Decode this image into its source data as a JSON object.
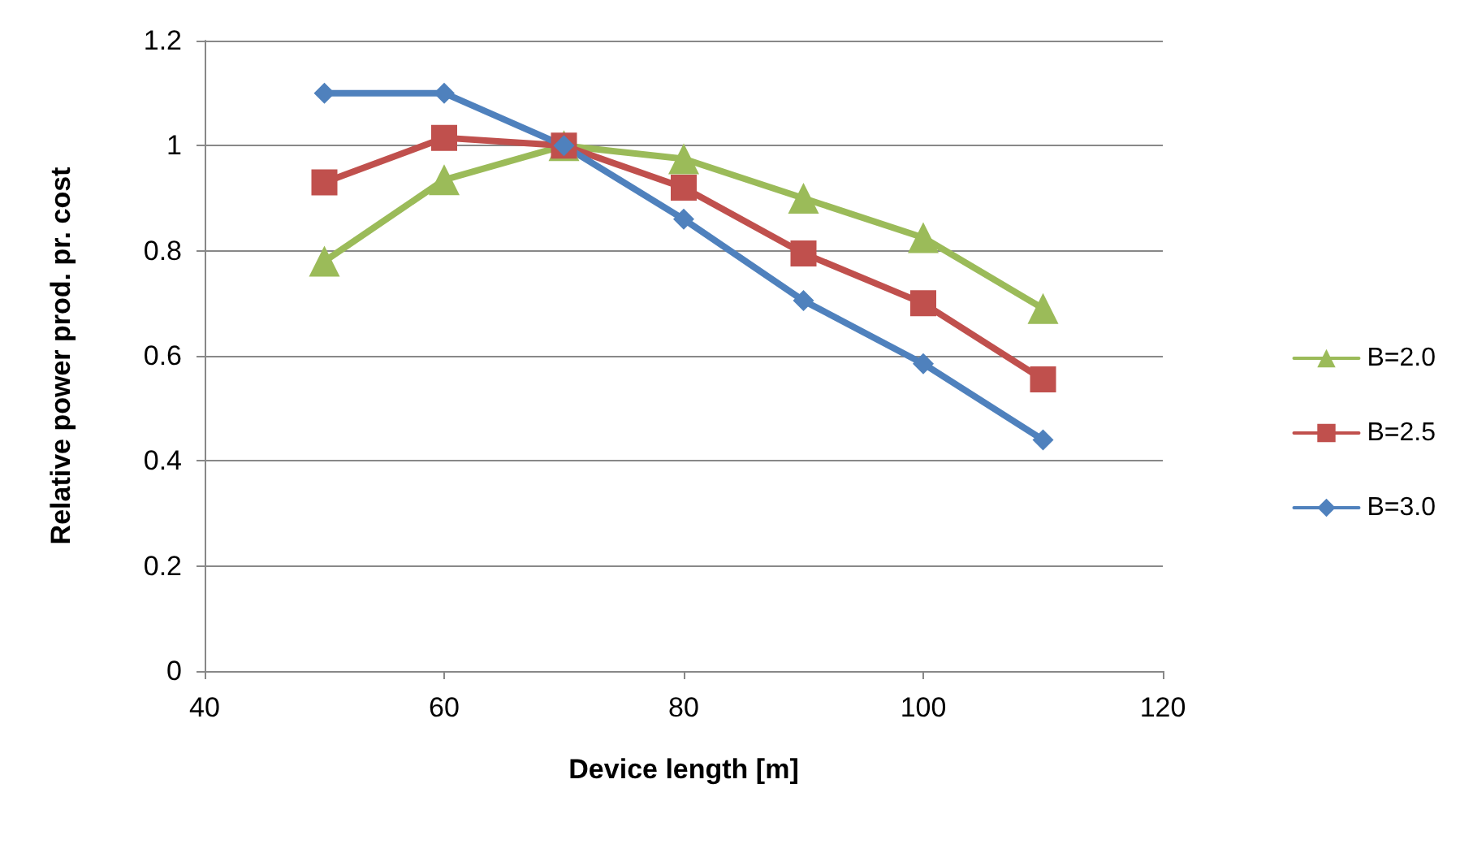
{
  "chart_data": {
    "type": "line",
    "xlabel": "Device length [m]",
    "ylabel": "Relative power prod. pr. cost",
    "x": [
      50,
      60,
      70,
      80,
      90,
      100,
      110
    ],
    "xlim": [
      40,
      120
    ],
    "xticks": [
      40,
      60,
      80,
      100,
      120
    ],
    "ylim": [
      0,
      1.2
    ],
    "yticks": [
      0,
      0.2,
      0.4,
      0.6,
      0.8,
      1,
      1.2
    ],
    "grid": "y",
    "legend": "right",
    "series": [
      {
        "name": "B=2.0",
        "color": "#9bbb59",
        "marker": "triangle",
        "values": [
          0.78,
          0.935,
          1.0,
          0.975,
          0.9,
          0.825,
          0.69
        ]
      },
      {
        "name": "B=2.5",
        "color": "#c0504d",
        "marker": "square",
        "values": [
          0.93,
          1.015,
          1.0,
          0.92,
          0.795,
          0.7,
          0.555
        ]
      },
      {
        "name": "B=3.0",
        "color": "#4f81bd",
        "marker": "diamond",
        "values": [
          1.1,
          1.1,
          1.0,
          0.86,
          0.705,
          0.585,
          0.44
        ]
      }
    ]
  }
}
